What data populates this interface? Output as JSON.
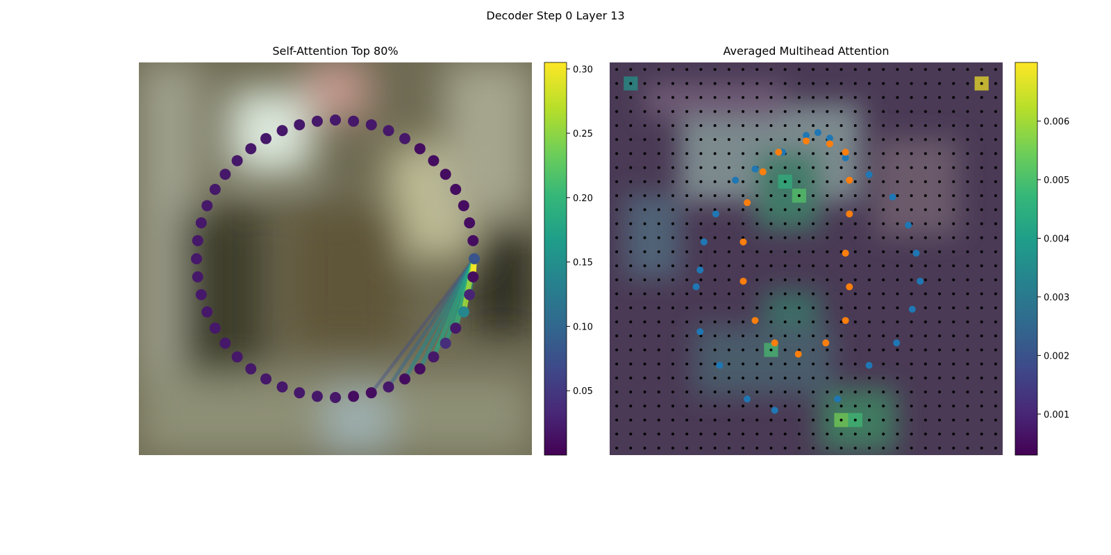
{
  "figure": {
    "title": "Decoder Step 0 Layer 13"
  },
  "colormap": [
    "#440154",
    "#482878",
    "#3e4989",
    "#31688e",
    "#26828e",
    "#1f9e89",
    "#35b779",
    "#6ece58",
    "#b5de2b",
    "#fde725"
  ],
  "point_colors": {
    "blue": "#1f77b4",
    "orange": "#ff7f0e",
    "grid": "#000000"
  },
  "chart_data": [
    {
      "type": "scatter",
      "title": "Self-Attention Top 80%",
      "subtype": "attention-lines over background photo",
      "background": "blurred photo (not reproduced as data)",
      "query_index": 0,
      "nodes_count": 48,
      "node_layout": "circle",
      "node_values": [
        0.08,
        0.01,
        0.01,
        0.01,
        0.01,
        0.01,
        0.01,
        0.01,
        0.02,
        0.02,
        0.02,
        0.02,
        0.02,
        0.02,
        0.02,
        0.02,
        0.02,
        0.02,
        0.02,
        0.02,
        0.02,
        0.02,
        0.02,
        0.02,
        0.02,
        0.02,
        0.02,
        0.02,
        0.02,
        0.02,
        0.02,
        0.02,
        0.02,
        0.02,
        0.02,
        0.02,
        0.02,
        0.01,
        0.01,
        0.02,
        0.01,
        0.01,
        0.02,
        0.04,
        0.02,
        0.14,
        0.03,
        0.01
      ],
      "attention_edges": [
        {
          "target": 47,
          "weight": 0.3
        },
        {
          "target": 45,
          "weight": 0.26
        },
        {
          "target": 44,
          "weight": 0.2
        },
        {
          "target": 43,
          "weight": 0.18
        },
        {
          "target": 46,
          "weight": 0.16
        },
        {
          "target": 42,
          "weight": 0.18
        },
        {
          "target": 41,
          "weight": 0.15
        },
        {
          "target": 40,
          "weight": 0.14
        },
        {
          "target": 39,
          "weight": 0.1
        },
        {
          "target": 38,
          "weight": 0.07
        }
      ],
      "colorbar": {
        "min": 0.0,
        "max": 0.305,
        "ticks": [
          "0.05",
          "0.10",
          "0.15",
          "0.20",
          "0.25",
          "0.30"
        ],
        "tick_values": [
          0.05,
          0.1,
          0.15,
          0.2,
          0.25,
          0.3
        ]
      }
    },
    {
      "type": "heatmap",
      "title": "Averaged Multihead Attention",
      "grid_size": 28,
      "hot_cells": [
        {
          "col": 26,
          "row": 1,
          "value": 0.0069
        },
        {
          "col": 1,
          "row": 1,
          "value": 0.0038
        },
        {
          "col": 13,
          "row": 9,
          "value": 0.0052
        },
        {
          "col": 12,
          "row": 8,
          "value": 0.0046
        },
        {
          "col": 11,
          "row": 20,
          "value": 0.005
        },
        {
          "col": 16,
          "row": 25,
          "value": 0.0056
        },
        {
          "col": 17,
          "row": 25,
          "value": 0.0049
        }
      ],
      "blue_points": [
        [
          0.5,
          1.3
        ],
        [
          0.44,
          1.6
        ],
        [
          0.37,
          1.9
        ],
        [
          0.32,
          2.1
        ],
        [
          0.27,
          2.7
        ],
        [
          0.24,
          3.2
        ],
        [
          0.23,
          3.7
        ],
        [
          0.22,
          4.0
        ],
        [
          0.23,
          4.8
        ],
        [
          0.28,
          5.4
        ],
        [
          0.35,
          6.0
        ],
        [
          0.42,
          6.2
        ],
        [
          0.58,
          6.0
        ],
        [
          0.66,
          5.4
        ],
        [
          0.73,
          5.0
        ],
        [
          0.77,
          4.4
        ],
        [
          0.79,
          3.9
        ],
        [
          0.78,
          3.4
        ],
        [
          0.76,
          2.9
        ],
        [
          0.72,
          2.4
        ],
        [
          0.66,
          2.0
        ],
        [
          0.6,
          1.7
        ],
        [
          0.56,
          1.35
        ],
        [
          0.53,
          1.25
        ]
      ],
      "orange_points": [
        [
          0.43,
          1.6
        ],
        [
          0.39,
          1.95
        ],
        [
          0.35,
          2.5
        ],
        [
          0.34,
          3.2
        ],
        [
          0.34,
          3.9
        ],
        [
          0.37,
          4.6
        ],
        [
          0.42,
          5.0
        ],
        [
          0.48,
          5.2
        ],
        [
          0.55,
          5.0
        ],
        [
          0.6,
          4.6
        ],
        [
          0.61,
          4.0
        ],
        [
          0.6,
          3.4
        ],
        [
          0.61,
          2.7
        ],
        [
          0.61,
          2.1
        ],
        [
          0.6,
          1.6
        ],
        [
          0.56,
          1.45
        ],
        [
          0.5,
          1.4
        ]
      ],
      "colorbar": {
        "min": 0.0003,
        "max": 0.007,
        "ticks": [
          "0.001",
          "0.002",
          "0.003",
          "0.004",
          "0.005",
          "0.006"
        ],
        "tick_values": [
          0.001,
          0.002,
          0.003,
          0.004,
          0.005,
          0.006
        ]
      }
    }
  ]
}
